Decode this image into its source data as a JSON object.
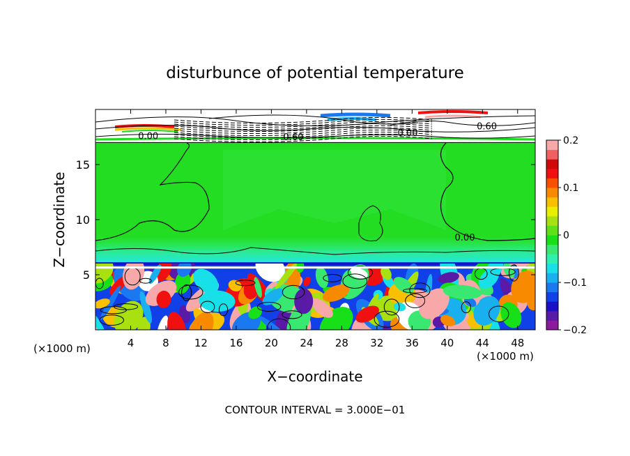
{
  "chart_data": {
    "type": "heatmap",
    "title": "disturbunce of potential temperature",
    "xlabel": "X−coordinate",
    "ylabel": "Z−coordinate",
    "x_unit_left": "(×1000 m)",
    "x_unit_right": "(×1000 m)",
    "footnote": "CONTOUR INTERVAL = 3.000E−01",
    "xlim": [
      0,
      50
    ],
    "ylim": [
      0,
      20
    ],
    "x_ticks": [
      {
        "value": 4,
        "label": "4"
      },
      {
        "value": 8,
        "label": "8"
      },
      {
        "value": 12,
        "label": "12"
      },
      {
        "value": 16,
        "label": "16"
      },
      {
        "value": 20,
        "label": "20"
      },
      {
        "value": 24,
        "label": "24"
      },
      {
        "value": 28,
        "label": "28"
      },
      {
        "value": 32,
        "label": "32"
      },
      {
        "value": 36,
        "label": "36"
      },
      {
        "value": 40,
        "label": "40"
      },
      {
        "value": 44,
        "label": "44"
      },
      {
        "value": 48,
        "label": "48"
      }
    ],
    "y_ticks": [
      {
        "value": 5,
        "label": "5"
      },
      {
        "value": 10,
        "label": "10"
      },
      {
        "value": 15,
        "label": "15"
      }
    ],
    "contour_labels": [
      {
        "text": "0.00",
        "x": 6,
        "y": 17.3
      },
      {
        "text": "0.60",
        "x": 22.5,
        "y": 17.2
      },
      {
        "text": "0.00",
        "x": 35.5,
        "y": 17.6
      },
      {
        "text": "0.60",
        "x": 44.5,
        "y": 18.2
      },
      {
        "text": "0.00",
        "x": 42,
        "y": 8.1
      }
    ],
    "colorbar": {
      "min": -0.2,
      "max": 0.2,
      "ticks": [
        {
          "value": 0.2,
          "label": "0.2"
        },
        {
          "value": 0.1,
          "label": "0.1"
        },
        {
          "value": 0,
          "label": "0"
        },
        {
          "value": -0.1,
          "label": "−0.1"
        },
        {
          "value": -0.2,
          "label": "−0.2"
        }
      ],
      "colors": [
        "#8c1a9e",
        "#5a1aa8",
        "#1a10c8",
        "#1240e8",
        "#1a78f0",
        "#19b0f0",
        "#17e0e8",
        "#30f0b0",
        "#38e870",
        "#18e018",
        "#60e018",
        "#a8e010",
        "#e8f000",
        "#f8c000",
        "#f88a00",
        "#f85000",
        "#f01010",
        "#d00808",
        "#f06060",
        "#f8a8a8"
      ]
    },
    "regions": {
      "upper_band": {
        "z_range": [
          17,
          20
        ],
        "color": "#ffffff"
      },
      "middle_field": {
        "z_range": [
          6,
          17
        ],
        "color": "#22dd22"
      },
      "lower_turbulent": {
        "z_range": [
          0,
          6
        ]
      }
    }
  }
}
